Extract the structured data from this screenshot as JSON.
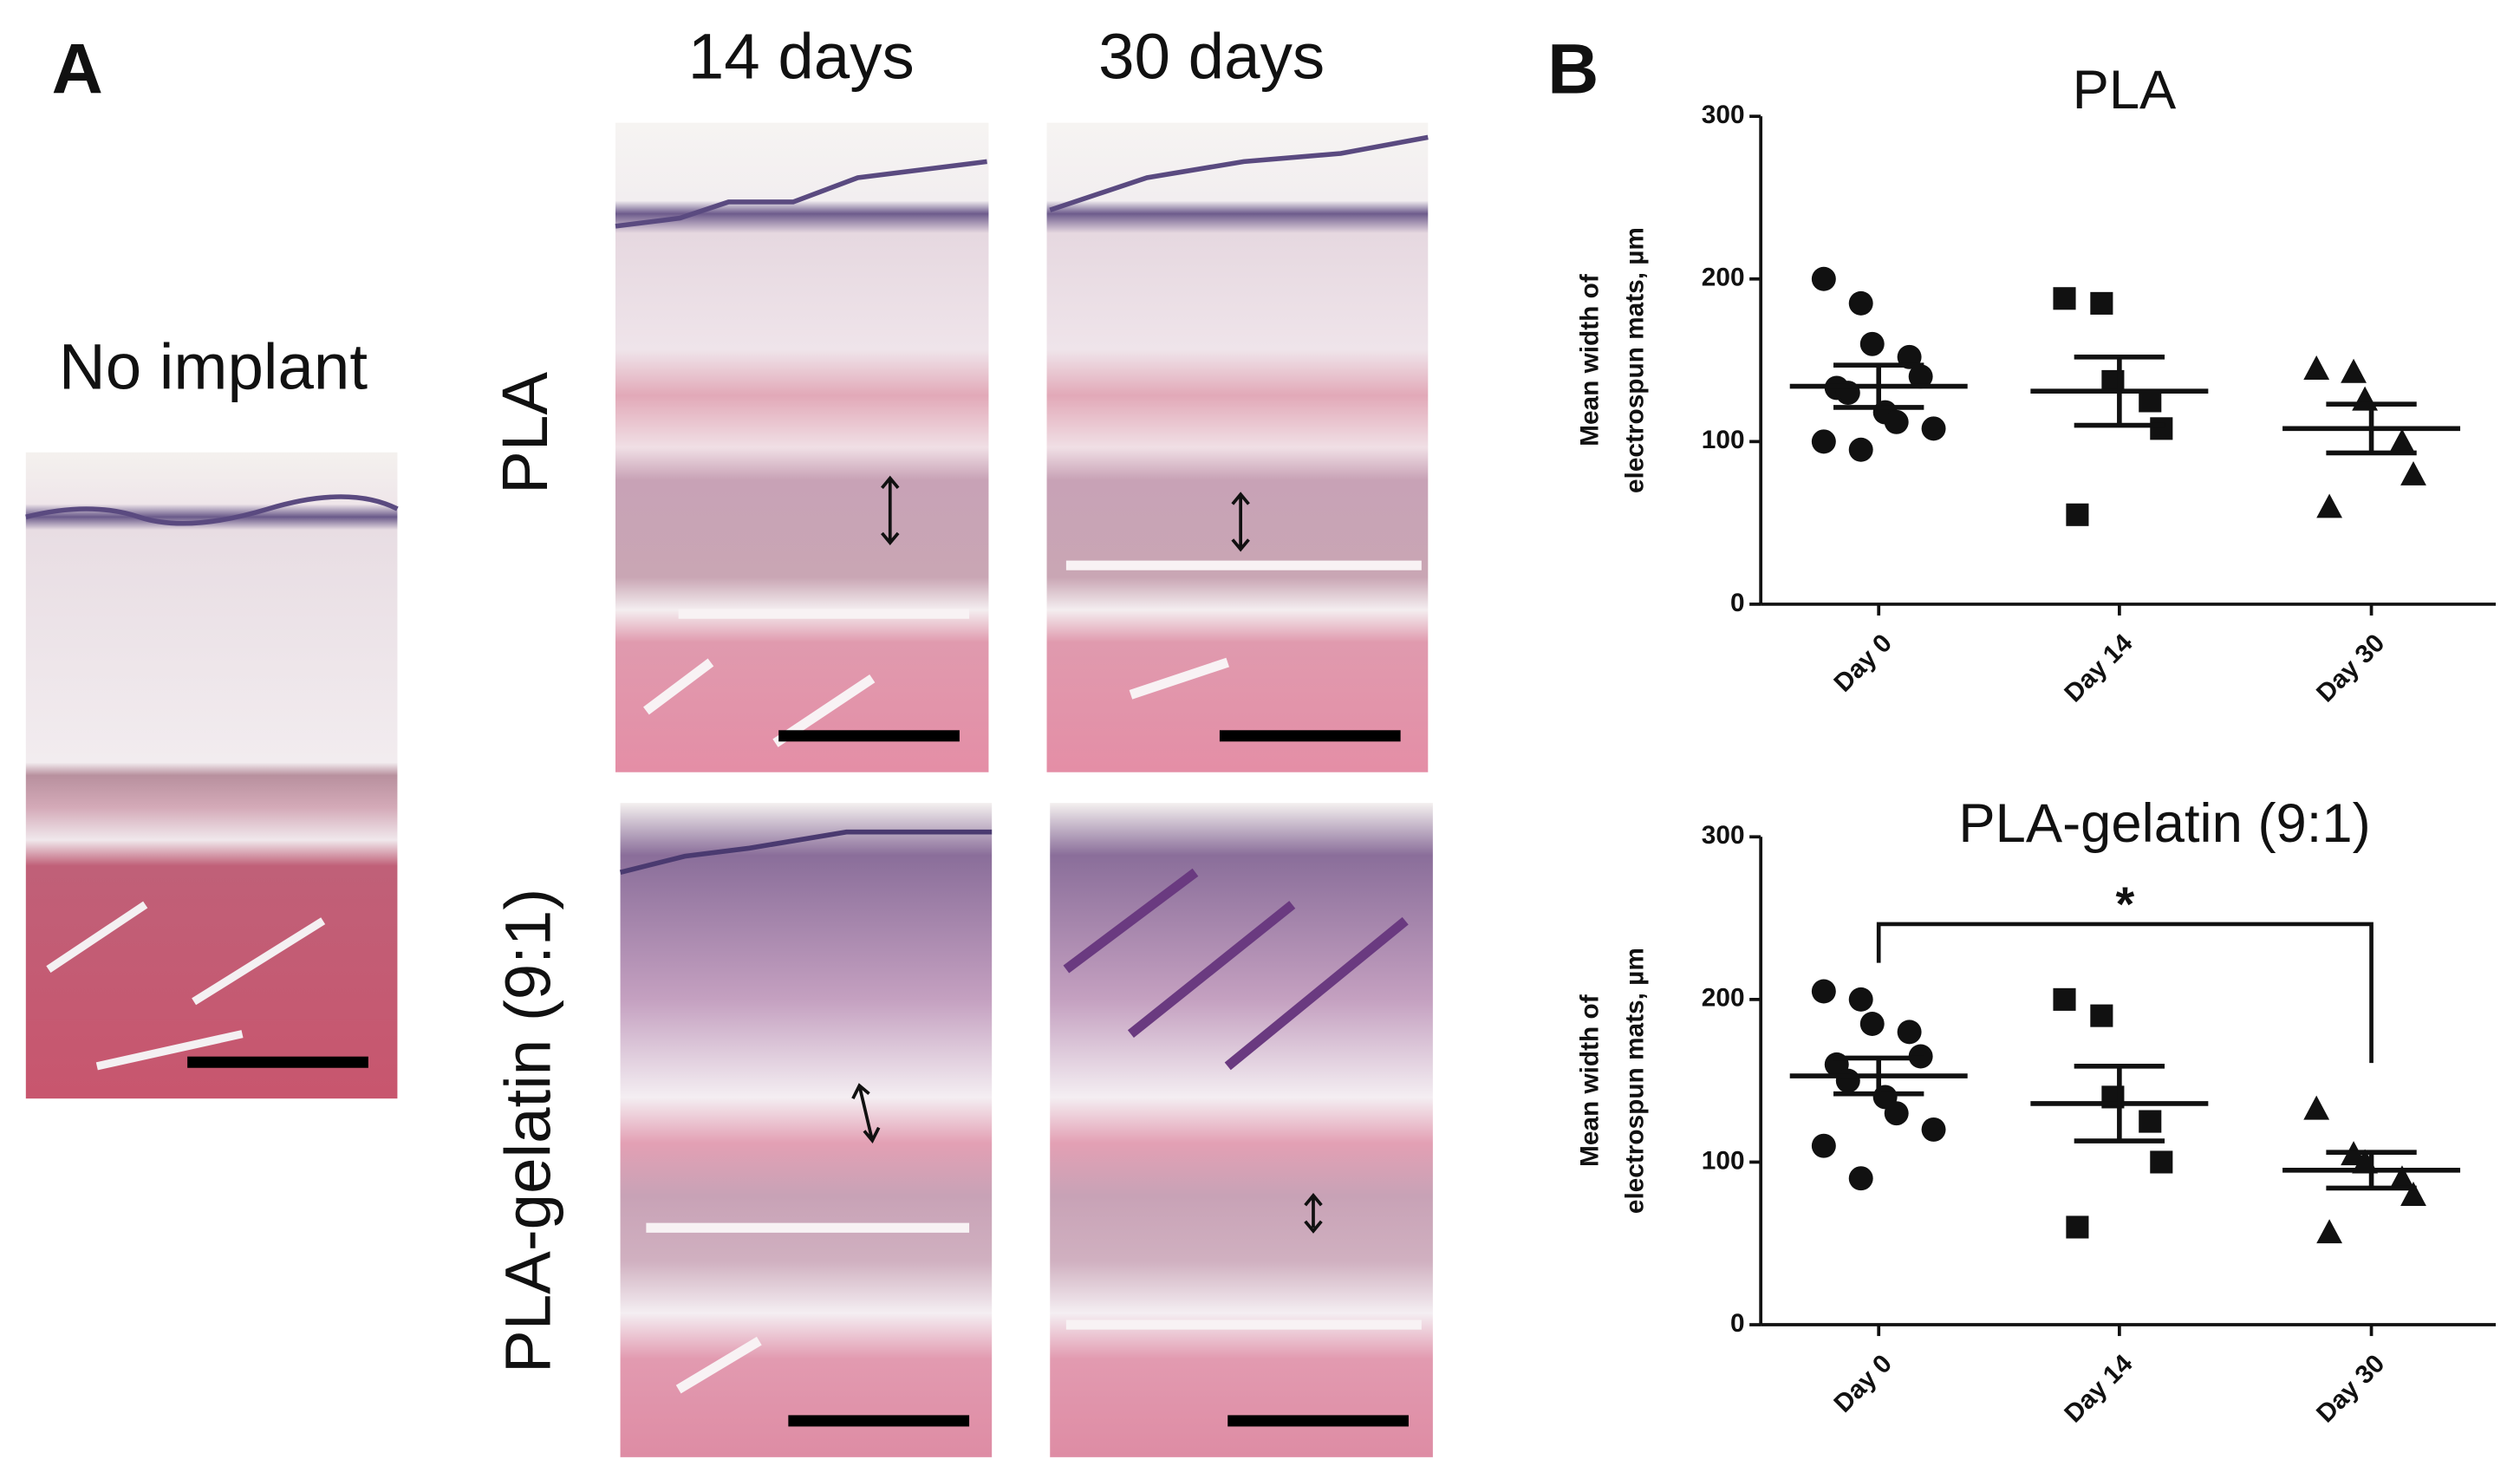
{
  "panel_a": {
    "label": "A",
    "columns": [
      "14 days",
      "30 days"
    ],
    "rows": [
      "PLA",
      "PLA-gelatin (9:1)"
    ],
    "control": "No implant"
  },
  "panel_b": {
    "label": "B"
  },
  "chart_data": [
    {
      "type": "scatter",
      "title": "PLA",
      "ylabel": [
        "Mean width of",
        "electrospun mats, µm"
      ],
      "categories": [
        "Day 0",
        "Day 14",
        "Day 30"
      ],
      "ylim": [
        0,
        300
      ],
      "yticks": [
        0,
        100,
        200,
        300
      ],
      "series": [
        {
          "marker": "circle",
          "color": "#111111",
          "values": [
            200,
            185,
            160,
            152,
            140,
            133,
            130,
            118,
            112,
            108,
            100,
            95
          ]
        },
        {
          "marker": "square",
          "color": "#111111",
          "values": [
            188,
            185,
            137,
            125,
            108,
            55
          ]
        },
        {
          "marker": "triangle",
          "color": "#111111",
          "values": [
            145,
            143,
            126,
            100,
            80,
            60
          ]
        }
      ],
      "means": [
        134,
        131,
        108
      ],
      "sem": [
        13,
        21,
        15
      ]
    },
    {
      "type": "scatter",
      "title": "PLA-gelatin (9:1)",
      "ylabel": [
        "Mean width of",
        "electrospun mats, µm"
      ],
      "categories": [
        "Day 0",
        "Day 14",
        "Day 30"
      ],
      "ylim": [
        0,
        300
      ],
      "yticks": [
        0,
        100,
        200,
        300
      ],
      "series": [
        {
          "marker": "circle",
          "color": "#111111",
          "values": [
            205,
            200,
            185,
            180,
            165,
            160,
            150,
            140,
            130,
            120,
            110,
            90
          ]
        },
        {
          "marker": "square",
          "color": "#111111",
          "values": [
            200,
            190,
            140,
            125,
            100,
            60
          ]
        },
        {
          "marker": "triangle",
          "color": "#111111",
          "values": [
            133,
            105,
            100,
            90,
            80,
            57
          ]
        }
      ],
      "means": [
        153,
        136,
        95
      ],
      "sem": [
        11,
        23,
        11
      ],
      "annotation": "*"
    }
  ]
}
